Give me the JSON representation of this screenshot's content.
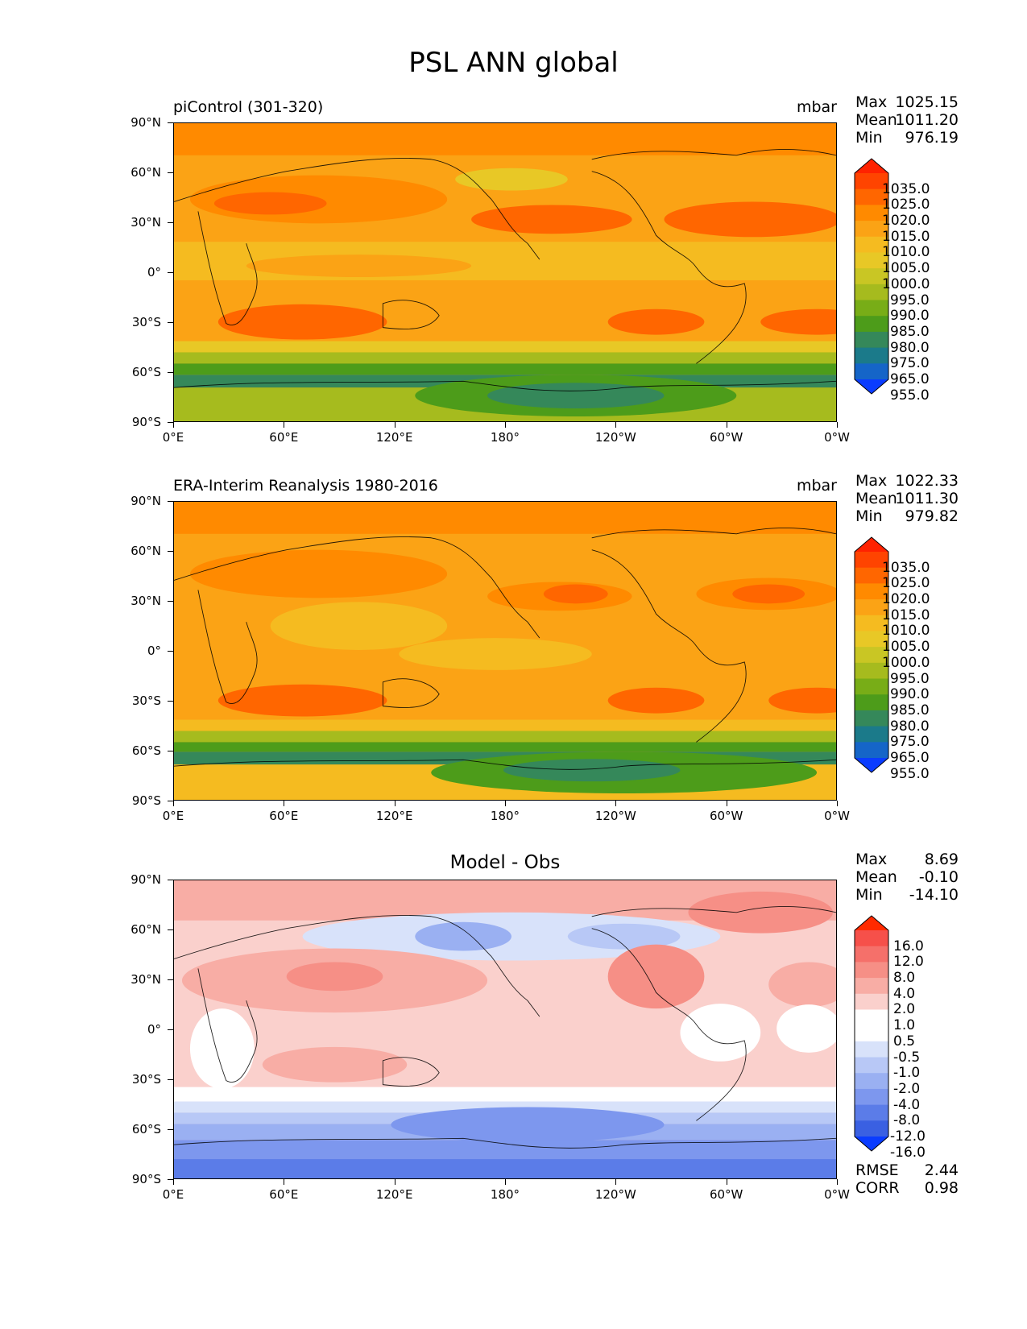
{
  "title": "PSL ANN global",
  "x_ticks": [
    "0°E",
    "60°E",
    "120°E",
    "180°",
    "120°W",
    "60°W",
    "0°W"
  ],
  "y_ticks": [
    "90°N",
    "60°N",
    "30°N",
    "0°",
    "30°S",
    "60°S",
    "90°S"
  ],
  "panels": [
    {
      "title_left": "piControl (301-320)",
      "title_right": "mbar",
      "stats": [
        {
          "label": "Max",
          "value": "1025.15"
        },
        {
          "label": "Mean",
          "value": "1011.20"
        },
        {
          "label": "Min",
          "value": "976.19"
        }
      ],
      "colorbar_labels": [
        "1035.0",
        "1025.0",
        "1020.0",
        "1015.0",
        "1010.0",
        "1005.0",
        "1000.0",
        "995.0",
        "990.0",
        "985.0",
        "980.0",
        "975.0",
        "965.0",
        "955.0"
      ]
    },
    {
      "title_left": "ERA-Interim Reanalysis 1980-2016",
      "title_right": "mbar",
      "stats": [
        {
          "label": "Max",
          "value": "1022.33"
        },
        {
          "label": "Mean",
          "value": "1011.30"
        },
        {
          "label": "Min",
          "value": "979.82"
        }
      ],
      "colorbar_labels": [
        "1035.0",
        "1025.0",
        "1020.0",
        "1015.0",
        "1010.0",
        "1005.0",
        "1000.0",
        "995.0",
        "990.0",
        "985.0",
        "980.0",
        "975.0",
        "965.0",
        "955.0"
      ]
    },
    {
      "title_center": "Model - Obs",
      "stats": [
        {
          "label": "Max",
          "value": "8.69"
        },
        {
          "label": "Mean",
          "value": "-0.10"
        },
        {
          "label": "Min",
          "value": "-14.10"
        }
      ],
      "colorbar_labels": [
        "16.0",
        "12.0",
        "8.0",
        "4.0",
        "2.0",
        "1.0",
        "0.5",
        "-0.5",
        "-1.0",
        "-2.0",
        "-4.0",
        "-8.0",
        "-12.0",
        "-16.0"
      ],
      "metrics": [
        {
          "label": "RMSE",
          "value": "2.44"
        },
        {
          "label": "CORR",
          "value": "0.98"
        }
      ]
    }
  ],
  "colors": {
    "abs_scale": [
      "#ff2200",
      "#ff4400",
      "#ff6600",
      "#ff8a00",
      "#fba315",
      "#f5bb20",
      "#e8c826",
      "#c9c624",
      "#a6bb1e",
      "#78ad17",
      "#4d9c1a",
      "#35885a",
      "#1b7a8a",
      "#1565c8",
      "#0a3cff"
    ],
    "diff_scale": [
      "#ff2a00",
      "#f6504a",
      "#f5706a",
      "#f68f86",
      "#f8ada5",
      "#fad0cc",
      "#ffffff",
      "#ffffff",
      "#d8e2fa",
      "#b8c8f6",
      "#9ab0f2",
      "#7d97ee",
      "#5b7ce8",
      "#3a60e2",
      "#0a3cff"
    ]
  }
}
